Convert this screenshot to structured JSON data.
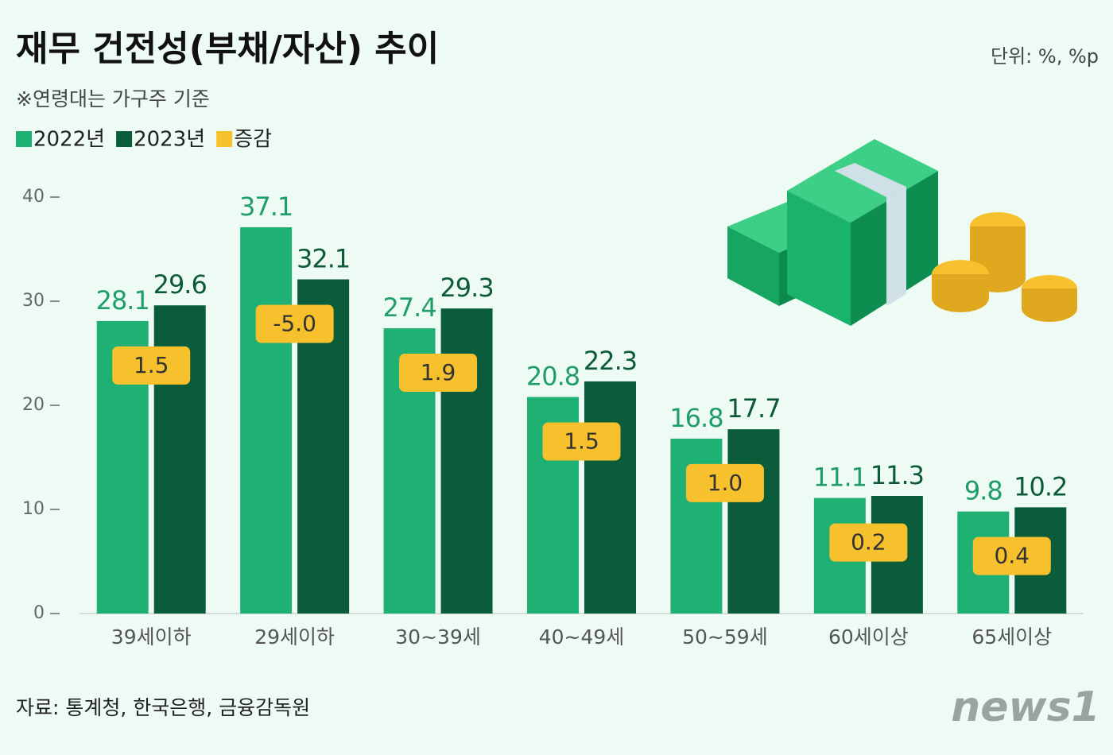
{
  "chart_data": {
    "type": "bar",
    "title": "재무 건전성(부채/자산) 추이",
    "unit": "단위: %, %p",
    "note": "※연령대는 가구주 기준",
    "source": "자료: 통계청, 한국은행, 금융감독원",
    "categories": [
      "39세이하",
      "29세이하",
      "30~39세",
      "40~49세",
      "50~59세",
      "60세이상",
      "65세이상"
    ],
    "series": [
      {
        "name": "2022년",
        "color": "#1fb073",
        "values": [
          28.1,
          37.1,
          27.4,
          20.8,
          16.8,
          11.1,
          9.8
        ]
      },
      {
        "name": "2023년",
        "color": "#0a5c3a",
        "values": [
          29.6,
          32.1,
          29.3,
          22.3,
          17.7,
          11.3,
          10.2
        ]
      },
      {
        "name": "증감",
        "color": "#f6c12c",
        "values": [
          1.5,
          -5.0,
          1.9,
          1.5,
          1.0,
          0.2,
          0.4
        ],
        "value_labels": [
          "1.5",
          "-5.0",
          "1.9",
          "1.5",
          "1.0",
          "0.2",
          "0.4"
        ]
      }
    ],
    "ylim": [
      0,
      40
    ],
    "yticks": [
      0,
      10,
      20,
      30,
      40
    ],
    "grid": false
  },
  "logo": "news1"
}
